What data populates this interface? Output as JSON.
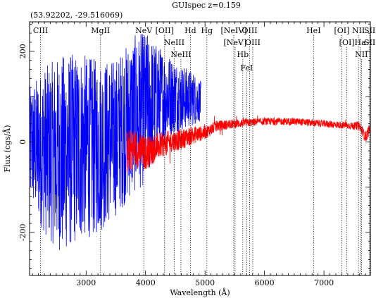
{
  "chart_data": {
    "type": "line",
    "title": "GUIspec z=0.159",
    "subtitle": "(53.92202, -29.516069)",
    "xlabel": "Wavelength (Å)",
    "ylabel": "Flux (cgs/Å)",
    "xlim": [
      2050,
      7780
    ],
    "ylim": [
      -295,
      265
    ],
    "x_ticks": [
      3000,
      4000,
      5000,
      6000,
      7000
    ],
    "y_ticks": [
      -200,
      0,
      200
    ],
    "grid": false,
    "series": [
      {
        "color": "#0000ff",
        "x_range": [
          2050,
          4930
        ],
        "envelope_x": [
          2050,
          2300,
          2600,
          2900,
          3200,
          3500,
          3800,
          4000,
          4200,
          4400,
          4600,
          4800,
          4930
        ],
        "envelope_lo": [
          -120,
          -190,
          -230,
          -200,
          -190,
          -150,
          -100,
          -80,
          -20,
          20,
          30,
          40,
          50
        ],
        "envelope_hi": [
          110,
          150,
          175,
          180,
          165,
          170,
          220,
          230,
          205,
          185,
          165,
          150,
          130
        ]
      },
      {
        "color": "#ff0000",
        "x_range": [
          3680,
          7780
        ],
        "mean_x": [
          3680,
          3800,
          3900,
          4000,
          4200,
          4400,
          4600,
          4800,
          5000,
          5200,
          5500,
          6000,
          6500,
          7000,
          7500,
          7600,
          7700,
          7780
        ],
        "mean_y": [
          -25,
          -15,
          -20,
          -25,
          -10,
          0,
          5,
          15,
          20,
          35,
          40,
          45,
          45,
          40,
          35,
          35,
          10,
          30
        ],
        "scatter": [
          50,
          45,
          40,
          38,
          30,
          25,
          22,
          20,
          15,
          12,
          10,
          8,
          8,
          8,
          8,
          10,
          12,
          14
        ]
      }
    ],
    "lines": [
      {
        "label": "CIII",
        "x": 2235,
        "row": 0
      },
      {
        "label": "MgII",
        "x": 3243,
        "row": 0
      },
      {
        "label": "NeV",
        "x": 3970,
        "row": 0
      },
      {
        "label": "[OII]",
        "x": 4320,
        "row": 0
      },
      {
        "label": "NeIII",
        "x": 4483,
        "row": 1
      },
      {
        "label": "NeIII",
        "x": 4595,
        "row": 2
      },
      {
        "label": "Hd",
        "x": 4754,
        "row": 0
      },
      {
        "label": "Hg",
        "x": 5031,
        "row": 0
      },
      {
        "label": "[NeIV]",
        "x": 5483,
        "row": 0
      },
      {
        "label": "[NeV]",
        "x": 5505,
        "row": 1
      },
      {
        "label": "OIII",
        "x": 5750,
        "row": 0
      },
      {
        "label": "OIII",
        "x": 5803,
        "row": 1
      },
      {
        "label": "Hb",
        "x": 5635,
        "row": 2
      },
      {
        "label": "FeI",
        "x": 5700,
        "row": 3
      },
      {
        "label": "HeI",
        "x": 6825,
        "row": 0
      },
      {
        "label": "[OI]",
        "x": 7300,
        "row": 0
      },
      {
        "label": "[OI]",
        "x": 7385,
        "row": 1
      },
      {
        "label": "NII",
        "x": 7580,
        "row": 0
      },
      {
        "label": "SII",
        "x": 7770,
        "row": 0
      },
      {
        "label": "Ha",
        "x": 7610,
        "row": 1
      },
      {
        "label": "SII",
        "x": 7770,
        "row": 1
      },
      {
        "label": "NII",
        "x": 7630,
        "row": 2
      }
    ]
  }
}
